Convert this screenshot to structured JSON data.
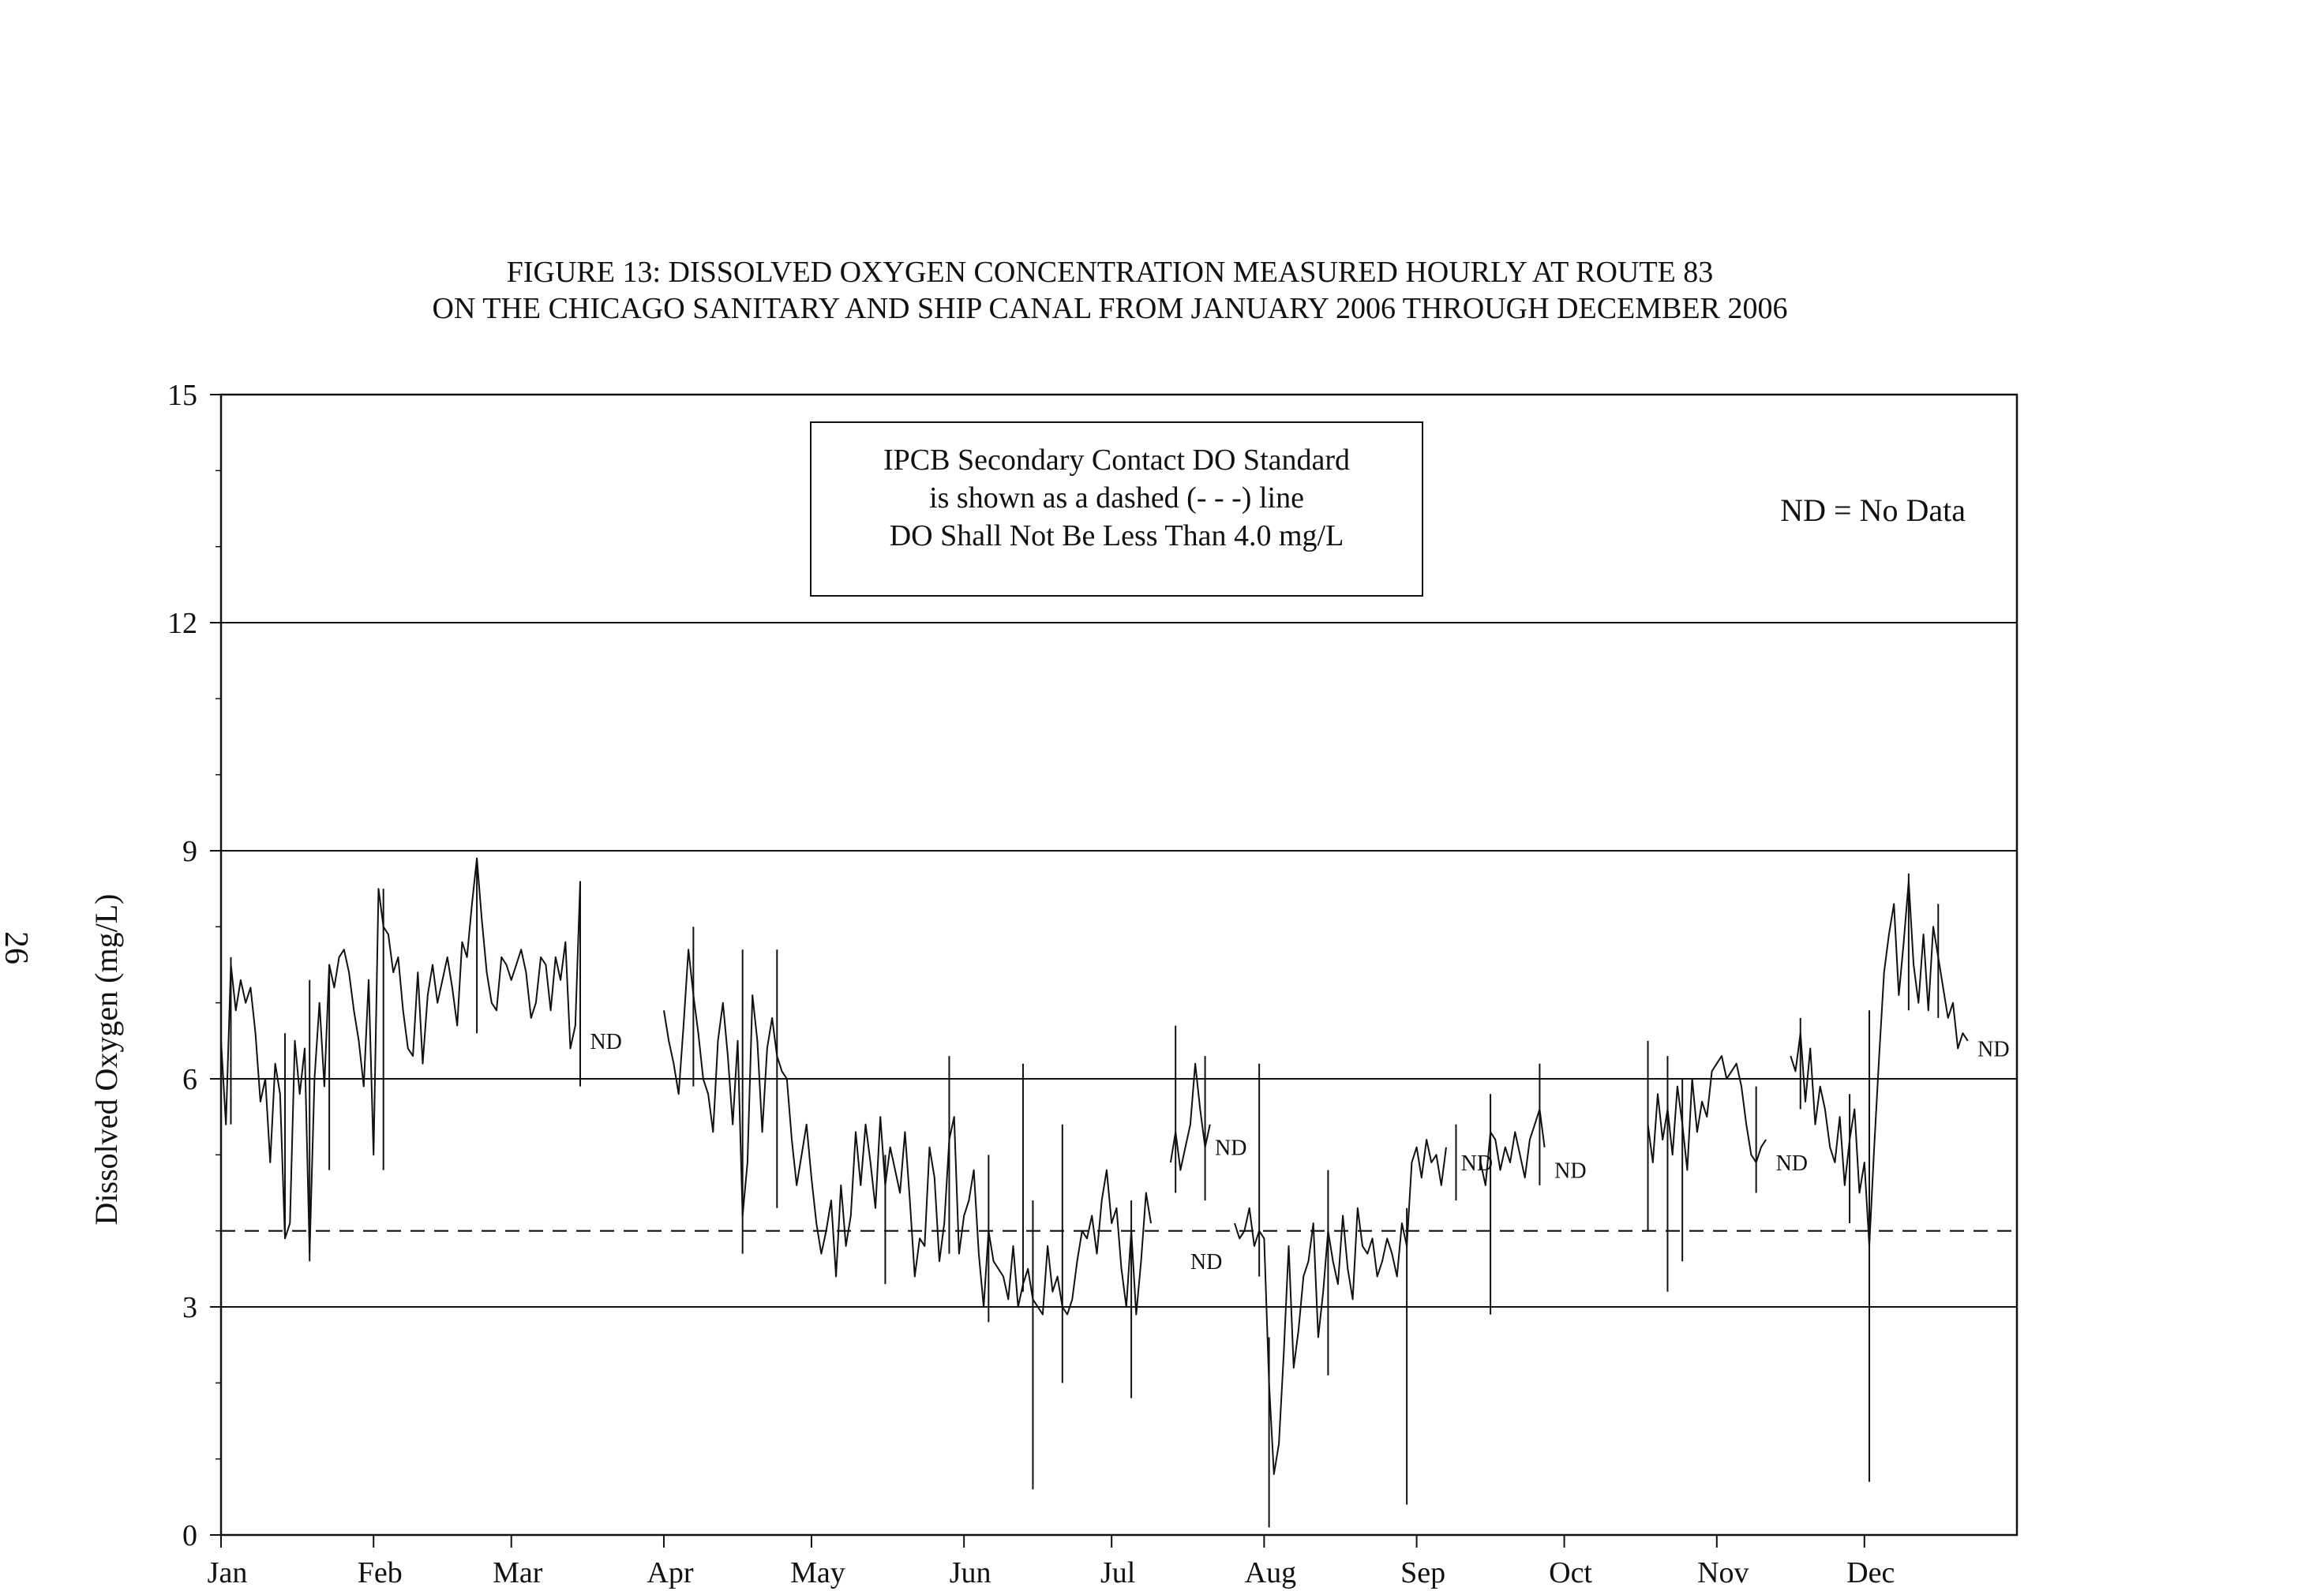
{
  "page_number": "26",
  "chart_data": {
    "type": "line",
    "title": "FIGURE 13: DISSOLVED OXYGEN CONCENTRATION MEASURED HOURLY AT ROUTE 83",
    "subtitle": "ON THE CHICAGO SANITARY AND SHIP CANAL FROM JANUARY 2006 THROUGH DECEMBER 2006",
    "xlabel": "",
    "ylabel": "Dissolved Oxygen (mg/L)",
    "ylim": [
      0,
      15
    ],
    "xlim": [
      1,
      366
    ],
    "x_unit": "day of year 2006",
    "yticks": [
      0,
      3,
      6,
      9,
      12,
      15
    ],
    "ytick_labels": [
      "0",
      "3",
      "6",
      "9",
      "12",
      "15"
    ],
    "ygrid": [
      3,
      6,
      9,
      12
    ],
    "xticks": [
      1,
      32,
      60,
      91,
      121,
      152,
      182,
      213,
      244,
      274,
      305,
      335
    ],
    "xtick_labels": [
      "Jan",
      "Feb",
      "Mar",
      "Apr",
      "May",
      "Jun",
      "Jul",
      "Aug",
      "Sep",
      "Oct",
      "Nov",
      "Dec"
    ],
    "standard": {
      "value": 4.0,
      "style": "dashed"
    },
    "annotation_box": [
      "IPCB Secondary Contact DO Standard",
      "is shown as a dashed (- - -) line",
      "DO Shall Not Be Less Than 4.0 mg/L"
    ],
    "legend_note": "ND = No Data",
    "nd_label": "ND",
    "nd_markers": [
      {
        "x": 76,
        "y": 6.5
      },
      {
        "x": 198,
        "y": 3.6
      },
      {
        "x": 203,
        "y": 5.1
      },
      {
        "x": 253,
        "y": 4.9
      },
      {
        "x": 272,
        "y": 4.8
      },
      {
        "x": 317,
        "y": 4.9
      },
      {
        "x": 358,
        "y": 6.4
      }
    ],
    "series": [
      {
        "style": "solid",
        "segments": [
          {
            "x": [
              1,
              2,
              3,
              4,
              5,
              6,
              7,
              8,
              9,
              10,
              11,
              12,
              13,
              14,
              15,
              16,
              17,
              18,
              19,
              20,
              21,
              22,
              23,
              24,
              25,
              26,
              27,
              28,
              29,
              30,
              31,
              32,
              33,
              34,
              35,
              36,
              37,
              38,
              39,
              40,
              41,
              42,
              43,
              44,
              45,
              46,
              47,
              48,
              49,
              50,
              51,
              52,
              53,
              54,
              55,
              56,
              57,
              58,
              59,
              60,
              61,
              62,
              63,
              64,
              65,
              66,
              67,
              68,
              69,
              70,
              71,
              72,
              73,
              74
            ],
            "y": [
              6.5,
              5.4,
              7.5,
              6.9,
              7.3,
              7.0,
              7.2,
              6.6,
              5.7,
              6.0,
              4.9,
              6.2,
              5.8,
              3.9,
              4.1,
              6.5,
              5.8,
              6.4,
              3.7,
              6.0,
              7.0,
              5.9,
              7.5,
              7.2,
              7.6,
              7.7,
              7.4,
              6.9,
              6.5,
              5.9,
              7.3,
              5.0,
              8.5,
              8.0,
              7.9,
              7.4,
              7.6,
              6.9,
              6.4,
              6.3,
              7.4,
              6.2,
              7.1,
              7.5,
              7.0,
              7.3,
              7.6,
              7.2,
              6.7,
              7.8,
              7.6,
              8.3,
              8.9,
              8.1,
              7.4,
              7.0,
              6.9,
              7.6,
              7.5,
              7.3,
              7.5,
              7.7,
              7.4,
              6.8,
              7.0,
              7.6,
              7.5,
              6.9,
              7.6,
              7.3,
              7.8,
              6.4,
              6.7,
              8.6
            ]
          },
          {
            "x": [
              91,
              92,
              93,
              94,
              95,
              96,
              97,
              98,
              99,
              100,
              101,
              102,
              103,
              104,
              105,
              106,
              107,
              108,
              109,
              110,
              111,
              112,
              113,
              114,
              115,
              116,
              117,
              118,
              119,
              120,
              121,
              122,
              123,
              124,
              125,
              126,
              127,
              128,
              129,
              130,
              131,
              132,
              133,
              134,
              135,
              136,
              137,
              138,
              139,
              140,
              141,
              142,
              143,
              144,
              145,
              146,
              147,
              148,
              149,
              150,
              151,
              152,
              153,
              154,
              155,
              156,
              157,
              158,
              159,
              160,
              161,
              162,
              163,
              164,
              165,
              166,
              167,
              168,
              169,
              170,
              171,
              172,
              173,
              174,
              175,
              176,
              177,
              178,
              179,
              180,
              181,
              182,
              183,
              184,
              185,
              186,
              187,
              188,
              189,
              190
            ],
            "y": [
              6.9,
              6.5,
              6.2,
              5.8,
              6.7,
              7.7,
              7.1,
              6.6,
              6.0,
              5.8,
              5.3,
              6.5,
              7.0,
              6.3,
              5.4,
              6.5,
              4.2,
              4.9,
              7.1,
              6.5,
              5.3,
              6.4,
              6.8,
              6.3,
              6.1,
              6.0,
              5.2,
              4.6,
              5.0,
              5.4,
              4.7,
              4.1,
              3.7,
              4.0,
              4.4,
              3.4,
              4.6,
              3.8,
              4.2,
              5.3,
              4.6,
              5.4,
              4.9,
              4.3,
              5.5,
              4.6,
              5.1,
              4.8,
              4.5,
              5.3,
              4.4,
              3.4,
              3.9,
              3.8,
              5.1,
              4.7,
              3.6,
              4.1,
              5.2,
              5.5,
              3.7,
              4.2,
              4.4,
              4.8,
              3.7,
              3.0,
              4.0,
              3.6,
              3.5,
              3.4,
              3.1,
              3.8,
              3.0,
              3.3,
              3.5,
              3.1,
              3.0,
              2.9,
              3.8,
              3.2,
              3.4,
              3.0,
              2.9,
              3.1,
              3.6,
              4.0,
              3.9,
              4.2,
              3.7,
              4.4,
              4.8,
              4.1,
              4.3,
              3.5,
              3.0,
              4.0,
              2.9,
              3.6,
              4.5,
              4.1
            ]
          },
          {
            "x": [
              194,
              195,
              196,
              197,
              198,
              199,
              200,
              201,
              202
            ],
            "y": [
              4.9,
              5.3,
              4.8,
              5.1,
              5.4,
              6.2,
              5.6,
              5.1,
              5.4
            ]
          },
          {
            "x": [
              207,
              208,
              209,
              210,
              211,
              212,
              213,
              214,
              215,
              216,
              217,
              218,
              219,
              220,
              221,
              222,
              223,
              224,
              225,
              226,
              227,
              228,
              229,
              230,
              231,
              232,
              233,
              234,
              235,
              236,
              237,
              238,
              239,
              240,
              241,
              242,
              243,
              244,
              245,
              246,
              247,
              248,
              249,
              250
            ],
            "y": [
              4.1,
              3.9,
              4.0,
              4.3,
              3.8,
              4.0,
              3.9,
              2.0,
              0.8,
              1.2,
              2.4,
              3.8,
              2.2,
              2.7,
              3.4,
              3.6,
              4.1,
              2.6,
              3.2,
              4.0,
              3.6,
              3.3,
              4.2,
              3.5,
              3.1,
              4.3,
              3.8,
              3.7,
              3.9,
              3.4,
              3.6,
              3.9,
              3.7,
              3.4,
              4.1,
              3.8,
              4.9,
              5.1,
              4.7,
              5.2,
              4.9,
              5.0,
              4.6,
              5.1
            ]
          },
          {
            "x": [
              257,
              258,
              259,
              260,
              261,
              262,
              263,
              264,
              265,
              266,
              267,
              268,
              269,
              270
            ],
            "y": [
              4.9,
              4.6,
              5.3,
              5.2,
              4.8,
              5.1,
              4.9,
              5.3,
              5.0,
              4.7,
              5.2,
              5.4,
              5.6,
              5.1
            ]
          },
          {
            "x": [
              291,
              292,
              293,
              294,
              295,
              296,
              297,
              298,
              299,
              300,
              301,
              302,
              303,
              304,
              305,
              306,
              307,
              308,
              309,
              310,
              311,
              312,
              313,
              314,
              315
            ],
            "y": [
              5.4,
              4.9,
              5.8,
              5.2,
              5.6,
              5.0,
              5.9,
              5.4,
              4.8,
              6.0,
              5.3,
              5.7,
              5.5,
              6.1,
              6.2,
              6.3,
              6.0,
              6.1,
              6.2,
              5.9,
              5.4,
              5.0,
              4.9,
              5.1,
              5.2
            ]
          },
          {
            "x": [
              320,
              321,
              322,
              323,
              324,
              325,
              326,
              327,
              328,
              329,
              330,
              331,
              332,
              333,
              334,
              335,
              336,
              337,
              338,
              339,
              340,
              341,
              342,
              343,
              344,
              345,
              346,
              347,
              348,
              349,
              350,
              351,
              352,
              353,
              354,
              355,
              356
            ],
            "y": [
              6.3,
              6.1,
              6.6,
              5.7,
              6.4,
              5.4,
              5.9,
              5.6,
              5.1,
              4.9,
              5.5,
              4.6,
              5.2,
              5.6,
              4.5,
              4.9,
              3.8,
              5.1,
              6.3,
              7.4,
              7.9,
              8.3,
              7.1,
              7.8,
              8.6,
              7.5,
              7.0,
              7.9,
              6.9,
              8.0,
              7.6,
              7.2,
              6.8,
              7.0,
              6.4,
              6.6,
              6.5
            ]
          }
        ],
        "spikes": [
          {
            "x": 3,
            "lo": 5.4,
            "hi": 7.6
          },
          {
            "x": 14,
            "lo": 3.9,
            "hi": 6.6
          },
          {
            "x": 19,
            "lo": 3.6,
            "hi": 7.3
          },
          {
            "x": 23,
            "lo": 4.8,
            "hi": 7.5
          },
          {
            "x": 34,
            "lo": 4.8,
            "hi": 8.5
          },
          {
            "x": 53,
            "lo": 6.6,
            "hi": 8.9
          },
          {
            "x": 74,
            "lo": 5.9,
            "hi": 8.6
          },
          {
            "x": 97,
            "lo": 5.9,
            "hi": 8.0
          },
          {
            "x": 107,
            "lo": 3.7,
            "hi": 7.7
          },
          {
            "x": 114,
            "lo": 4.3,
            "hi": 7.7
          },
          {
            "x": 136,
            "lo": 3.3,
            "hi": 5.0
          },
          {
            "x": 149,
            "lo": 3.7,
            "hi": 6.3
          },
          {
            "x": 157,
            "lo": 2.8,
            "hi": 5.0
          },
          {
            "x": 164,
            "lo": 3.2,
            "hi": 6.2
          },
          {
            "x": 166,
            "lo": 0.6,
            "hi": 4.4
          },
          {
            "x": 172,
            "lo": 2.0,
            "hi": 5.4
          },
          {
            "x": 186,
            "lo": 1.8,
            "hi": 4.4
          },
          {
            "x": 195,
            "lo": 4.5,
            "hi": 6.7
          },
          {
            "x": 201,
            "lo": 4.4,
            "hi": 6.3
          },
          {
            "x": 212,
            "lo": 3.4,
            "hi": 6.2
          },
          {
            "x": 214,
            "lo": 0.1,
            "hi": 2.6
          },
          {
            "x": 226,
            "lo": 2.1,
            "hi": 4.8
          },
          {
            "x": 242,
            "lo": 0.4,
            "hi": 4.3
          },
          {
            "x": 252,
            "lo": 4.4,
            "hi": 5.4
          },
          {
            "x": 259,
            "lo": 2.9,
            "hi": 5.8
          },
          {
            "x": 269,
            "lo": 4.6,
            "hi": 6.2
          },
          {
            "x": 291,
            "lo": 4.0,
            "hi": 6.5
          },
          {
            "x": 295,
            "lo": 3.2,
            "hi": 6.3
          },
          {
            "x": 298,
            "lo": 3.6,
            "hi": 6.0
          },
          {
            "x": 313,
            "lo": 4.5,
            "hi": 5.9
          },
          {
            "x": 322,
            "lo": 5.6,
            "hi": 6.8
          },
          {
            "x": 332,
            "lo": 4.1,
            "hi": 5.8
          },
          {
            "x": 336,
            "lo": 0.7,
            "hi": 6.9
          },
          {
            "x": 344,
            "lo": 6.9,
            "hi": 8.7
          },
          {
            "x": 350,
            "lo": 6.8,
            "hi": 8.3
          }
        ]
      }
    ]
  }
}
